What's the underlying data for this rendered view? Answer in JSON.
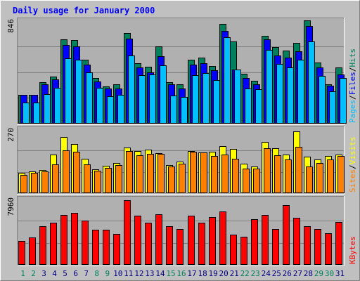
{
  "chart_data": {
    "type": "bar",
    "title": "Daily usage for January 2000",
    "colors": {
      "hits": "#00805C",
      "files": "#0000FF",
      "pages": "#00C0FF",
      "visits": "#FFFF00",
      "sites": "#FF8000",
      "kbytes": "#FF0000",
      "title": "#0000FF",
      "day_normal": "#000080",
      "day_weekend": "#00805C",
      "background": "#C0C0C0",
      "plot_bg": "#B0B0B0"
    },
    "days": [
      "1",
      "2",
      "3",
      "4",
      "5",
      "6",
      "7",
      "8",
      "9",
      "10",
      "11",
      "12",
      "13",
      "14",
      "15",
      "16",
      "17",
      "18",
      "19",
      "20",
      "21",
      "22",
      "23",
      "24",
      "25",
      "26",
      "27",
      "28",
      "29",
      "30",
      "31"
    ],
    "weekend_days": [
      1,
      2,
      8,
      9,
      15,
      16,
      22,
      23,
      29,
      30
    ],
    "panels": [
      {
        "id": "requests",
        "max_label": "846",
        "ymax": 846,
        "legend": [
          {
            "text": "Pages",
            "color": "#00C0FF"
          },
          {
            "text": "/",
            "color": "#000000"
          },
          {
            "text": "Files",
            "color": "#0000FF"
          },
          {
            "text": "/",
            "color": "#000000"
          },
          {
            "text": "Hits",
            "color": "#00805C"
          }
        ],
        "series": [
          {
            "name": "Hits",
            "color": "#00805C",
            "values": [
              235,
              235,
              340,
              385,
              693,
              685,
              523,
              374,
              303,
              321,
              743,
              494,
              464,
              634,
              340,
              321,
              523,
              541,
              474,
              817,
              675,
              407,
              351,
              721,
              625,
              601,
              664,
              845,
              503,
              325,
              460
            ]
          },
          {
            "name": "Files",
            "color": "#0000FF",
            "values": [
              237,
              237,
              320,
              363,
              644,
              634,
              482,
              347,
              290,
              289,
              694,
              458,
              422,
              553,
              325,
              289,
              482,
              493,
              438,
              762,
              444,
              375,
              324,
              693,
              560,
              540,
              594,
              799,
              459,
              309,
              402
            ]
          },
          {
            "name": "Pages",
            "color": "#00C0FF",
            "values": [
              173,
              173,
              244,
              291,
              536,
              521,
              421,
              292,
              224,
              235,
              561,
              395,
              405,
              476,
              228,
              218,
              398,
              413,
              358,
              708,
              444,
              290,
              282,
              604,
              487,
              460,
              521,
              675,
              389,
              265,
              374
            ]
          }
        ]
      },
      {
        "id": "visits",
        "max_label": "270",
        "ymax": 270,
        "legend": [
          {
            "text": "Sites",
            "color": "#FF8000"
          },
          {
            "text": "/",
            "color": "#000000"
          },
          {
            "text": "Visits",
            "color": "#FFFF00"
          }
        ],
        "series": [
          {
            "name": "Visits",
            "color": "#FFFF00",
            "values": [
              86,
              92,
              98,
              163,
              236,
              208,
              146,
              102,
              116,
              128,
              194,
              178,
              183,
              168,
              119,
              133,
              177,
              173,
              176,
              200,
              187,
              124,
              113,
              218,
              190,
              164,
              260,
              153,
              143,
              156,
              162
            ]
          },
          {
            "name": "Sites",
            "color": "#FF8000",
            "values": [
              78,
              86,
              93,
              123,
              180,
              176,
              121,
              96,
              108,
              119,
              178,
              161,
              167,
              165,
              114,
              126,
              174,
              171,
              157,
              162,
              144,
              105,
              103,
              189,
              160,
              143,
              195,
              113,
              127,
              142,
              157
            ]
          }
        ]
      },
      {
        "id": "kbytes",
        "max_label": "7960",
        "ymax": 7960,
        "legend": [
          {
            "text": "KBytes",
            "color": "#FF0000"
          }
        ],
        "series": [
          {
            "name": "KBytes",
            "color": "#FF0000",
            "values": [
              2900,
              3300,
              4650,
              5050,
              6000,
              6250,
              5350,
              4200,
              4200,
              3750,
              7800,
              5950,
              5050,
              6100,
              4650,
              4350,
              5950,
              5050,
              5750,
              6450,
              3650,
              3350,
              5500,
              6050,
              4350,
              7200,
              5650,
              4650,
              4350,
              3850,
              5200
            ]
          }
        ]
      }
    ]
  }
}
